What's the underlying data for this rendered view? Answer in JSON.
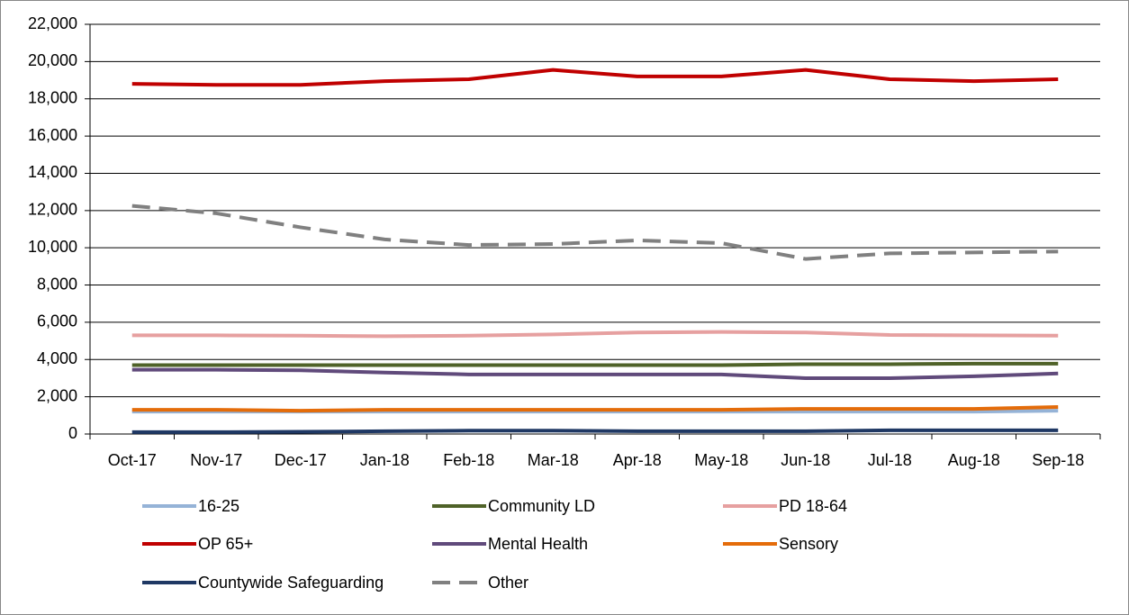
{
  "chart_data": {
    "type": "line",
    "categories": [
      "Oct-17",
      "Nov-17",
      "Dec-17",
      "Jan-18",
      "Feb-18",
      "Mar-18",
      "Apr-18",
      "May-18",
      "Jun-18",
      "Jul-18",
      "Aug-18",
      "Sep-18"
    ],
    "ylim": [
      0,
      22000
    ],
    "yticks": [
      0,
      {
        "value": 2000,
        "label": "2,000"
      },
      {
        "value": 4000,
        "label": "4,000"
      },
      {
        "value": 6000,
        "label": "6,000"
      },
      {
        "value": 8000,
        "label": "8,000"
      },
      {
        "value": 10000,
        "label": "10,000"
      },
      {
        "value": 12000,
        "label": "12,000"
      },
      {
        "value": 14000,
        "label": "14,000"
      },
      {
        "value": 16000,
        "label": "16,000"
      },
      {
        "value": 18000,
        "label": "18,000"
      },
      {
        "value": 20000,
        "label": "20,000"
      },
      {
        "value": 22000,
        "label": "22,000"
      }
    ],
    "grid": true,
    "legend": "bottom",
    "series": [
      {
        "name": "16-25",
        "color": "#95b3d7",
        "values": [
          1200,
          1200,
          1200,
          1200,
          1200,
          1200,
          1200,
          1200,
          1200,
          1200,
          1200,
          1250
        ]
      },
      {
        "name": "Community LD",
        "color": "#4f6228",
        "values": [
          3700,
          3700,
          3700,
          3700,
          3700,
          3700,
          3700,
          3700,
          3750,
          3750,
          3780,
          3780
        ]
      },
      {
        "name": "PD 18-64",
        "color": "#e6a0a0",
        "values": [
          5300,
          5300,
          5280,
          5250,
          5280,
          5350,
          5450,
          5480,
          5450,
          5320,
          5300,
          5280
        ]
      },
      {
        "name": "OP 65+",
        "color": "#c00000",
        "values": [
          18800,
          18750,
          18750,
          18950,
          19050,
          19550,
          19200,
          19200,
          19550,
          19050,
          18950,
          19050
        ]
      },
      {
        "name": "Mental Health",
        "color": "#604a7b",
        "values": [
          3450,
          3450,
          3420,
          3300,
          3200,
          3200,
          3200,
          3200,
          3000,
          3000,
          3100,
          3250
        ]
      },
      {
        "name": "Sensory",
        "color": "#e46c0a",
        "values": [
          1300,
          1300,
          1250,
          1300,
          1300,
          1300,
          1300,
          1300,
          1350,
          1350,
          1350,
          1450
        ]
      },
      {
        "name": "Countywide Safeguarding",
        "color": "#1f3864",
        "values": [
          100,
          100,
          120,
          150,
          180,
          180,
          150,
          150,
          150,
          200,
          200,
          200
        ]
      },
      {
        "name": "Other",
        "color": "#808080",
        "dash": true,
        "values": [
          12250,
          11850,
          11100,
          10450,
          10150,
          10200,
          10400,
          10250,
          9400,
          9700,
          9750,
          9800
        ]
      }
    ]
  }
}
